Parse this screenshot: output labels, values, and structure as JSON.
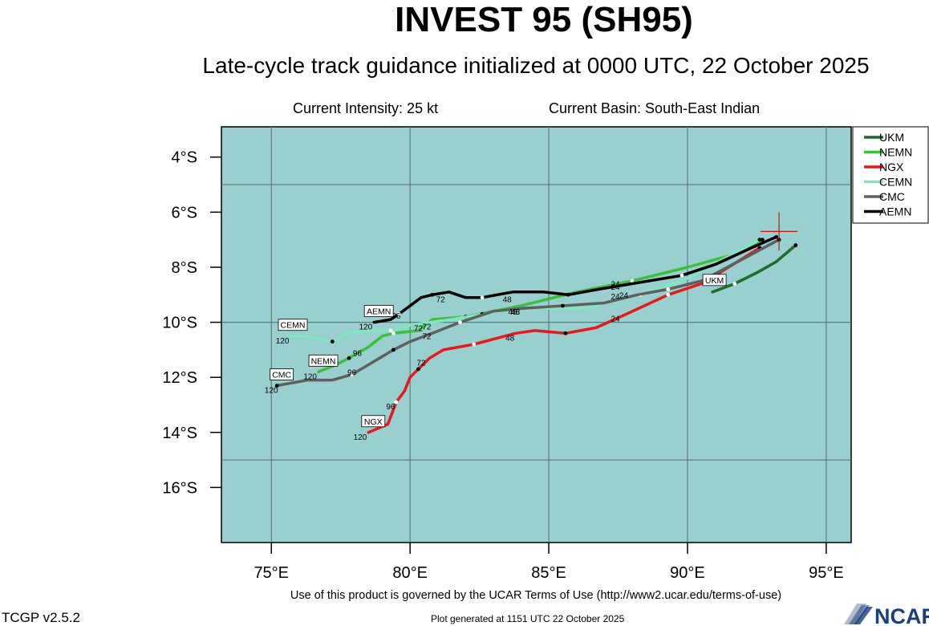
{
  "header": {
    "title": "INVEST 95 (SH95)",
    "subtitle": "Late-cycle track guidance initialized at 0000 UTC, 22 October 2025",
    "intensity": "Current Intensity: 25 kt",
    "basin": "Current Basin: South-East Indian"
  },
  "footer": {
    "terms": "Use of this product is governed by the UCAR Terms of Use (http://www2.ucar.edu/terms-of-use)",
    "version": "TCGP v2.5.2",
    "generated": "Plot generated at 1151 UTC   22 October 2025",
    "logo_text": "NCAR"
  },
  "colors": {
    "ocean": "#99cfcf",
    "UKM": "#1f6b2a",
    "NEMN": "#3cbf3c",
    "NGX": "#e61a1a",
    "CEMN": "#7fe6c0",
    "CMC": "#5f5f5f",
    "AEMN": "#000000",
    "center_marker": "#cc1111"
  },
  "chart_data": {
    "type": "line",
    "xlabel": "",
    "ylabel": "",
    "xlim": [
      73.2,
      95.9
    ],
    "ylim": [
      -18,
      -2.9
    ],
    "x_ticks": [
      75,
      80,
      85,
      90,
      95
    ],
    "x_tick_labels": [
      "75°E",
      "80°E",
      "85°E",
      "90°E",
      "95°E"
    ],
    "y_ticks": [
      -4,
      -6,
      -8,
      -10,
      -12,
      -14,
      -16
    ],
    "y_tick_labels": [
      "4°S",
      "6°S",
      "8°S",
      "10°S",
      "12°S",
      "14°S",
      "16°S"
    ],
    "grid_x": [
      75,
      80,
      85,
      90,
      95
    ],
    "grid_y": [
      -5,
      -10,
      -15
    ],
    "grid": true,
    "legend_position": "top-right",
    "current_position": {
      "lon": 93.3,
      "lat": -6.7
    },
    "series": [
      {
        "name": "UKM",
        "lon": [
          93.9,
          93.2,
          92.5,
          91.7,
          90.9
        ],
        "lat": [
          -7.2,
          -7.8,
          -8.2,
          -8.6,
          -8.9
        ],
        "hour_labels": [],
        "end_label": "UKM"
      },
      {
        "name": "NEMN",
        "lon": [
          92.7,
          91.8,
          90.0,
          88.0,
          86.0,
          84.0,
          82.0,
          80.8,
          80.3,
          79.4,
          79.0,
          78.5,
          77.8,
          77.2,
          76.7
        ],
        "lat": [
          -7.0,
          -7.5,
          -8.0,
          -8.5,
          -8.9,
          -9.4,
          -9.8,
          -9.9,
          -10.3,
          -10.4,
          -10.5,
          -10.9,
          -11.3,
          -11.6,
          -11.8
        ],
        "hour_labels": [
          {
            "lon": 87.4,
            "lat": -8.7,
            "text": "24"
          },
          {
            "lon": 83.7,
            "lat": -9.6,
            "text": "48"
          },
          {
            "lon": 80.3,
            "lat": -10.2,
            "text": "72"
          },
          {
            "lon": 78.1,
            "lat": -11.1,
            "text": "96"
          },
          {
            "lon": 76.4,
            "lat": -11.95,
            "text": "120"
          }
        ],
        "end_label": "NEMN"
      },
      {
        "name": "NGX",
        "lon": [
          92.6,
          91.8,
          90.5,
          89.3,
          87.8,
          86.7,
          85.6,
          84.5,
          83.8,
          82.3,
          81.2,
          80.7,
          80.3,
          80.0,
          79.8,
          79.5,
          79.2,
          78.5
        ],
        "lat": [
          -7.3,
          -7.8,
          -8.6,
          -9.0,
          -9.7,
          -10.2,
          -10.4,
          -10.3,
          -10.4,
          -10.8,
          -11.0,
          -11.3,
          -11.7,
          -12.0,
          -12.5,
          -12.9,
          -13.7,
          -14.0
        ],
        "hour_labels": [
          {
            "lon": 87.4,
            "lat": -9.85,
            "text": "24"
          },
          {
            "lon": 83.6,
            "lat": -10.55,
            "text": "48"
          },
          {
            "lon": 80.4,
            "lat": -11.45,
            "text": "72"
          },
          {
            "lon": 79.3,
            "lat": -13.05,
            "text": "96"
          },
          {
            "lon": 78.2,
            "lat": -14.15,
            "text": "120"
          }
        ],
        "end_label": "NGX"
      },
      {
        "name": "CEMN",
        "lon": [
          92.6,
          91.5,
          90.0,
          88.3,
          86.3,
          84.0,
          82.6,
          81.5,
          80.0,
          79.3,
          78.5,
          77.7,
          77.2,
          76.3,
          75.6
        ],
        "lat": [
          -7.0,
          -7.6,
          -8.4,
          -9.0,
          -9.5,
          -9.5,
          -9.7,
          -9.9,
          -10.1,
          -10.3,
          -10.3,
          -10.4,
          -10.7,
          -10.5,
          -10.5
        ],
        "hour_labels": [
          {
            "lon": 87.4,
            "lat": -9.05,
            "text": "24"
          },
          {
            "lon": 83.8,
            "lat": -9.6,
            "text": "48"
          },
          {
            "lon": 80.6,
            "lat": -10.15,
            "text": "72"
          },
          {
            "lon": 75.4,
            "lat": -10.65,
            "text": "120"
          }
        ],
        "end_label": "CEMN"
      },
      {
        "name": "CMC",
        "lon": [
          93.3,
          92.0,
          90.5,
          89.3,
          88.2,
          87.0,
          85.5,
          84.0,
          83.0,
          81.8,
          80.8,
          80.0,
          79.4,
          78.9,
          78.4,
          77.9,
          77.2,
          76.3,
          75.2
        ],
        "lat": [
          -7.0,
          -7.7,
          -8.5,
          -8.8,
          -9.0,
          -9.3,
          -9.4,
          -9.5,
          -9.6,
          -10.0,
          -10.4,
          -10.7,
          -11.0,
          -11.3,
          -11.6,
          -11.9,
          -12.1,
          -12.1,
          -12.3
        ],
        "hour_labels": [
          {
            "lon": 87.7,
            "lat": -9.0,
            "text": "24"
          },
          {
            "lon": 83.8,
            "lat": -9.6,
            "text": "48"
          },
          {
            "lon": 80.6,
            "lat": -10.5,
            "text": "72"
          },
          {
            "lon": 77.9,
            "lat": -11.8,
            "text": "96"
          },
          {
            "lon": 75.0,
            "lat": -12.45,
            "text": "120"
          }
        ],
        "end_label": "CMC"
      },
      {
        "name": "AEMN",
        "lon": [
          93.2,
          92.3,
          91.0,
          89.8,
          88.0,
          86.8,
          85.7,
          84.8,
          83.7,
          82.6,
          82.0,
          81.4,
          80.8,
          80.4,
          80.0,
          79.6,
          79.3,
          78.7
        ],
        "lat": [
          -6.9,
          -7.3,
          -7.9,
          -8.3,
          -8.6,
          -8.8,
          -9.0,
          -8.9,
          -8.9,
          -9.1,
          -9.1,
          -8.9,
          -9.0,
          -9.1,
          -9.4,
          -9.7,
          -9.9,
          -10.0
        ],
        "hour_labels": [
          {
            "lon": 87.4,
            "lat": -8.6,
            "text": "24"
          },
          {
            "lon": 83.5,
            "lat": -9.15,
            "text": "48"
          },
          {
            "lon": 81.1,
            "lat": -9.15,
            "text": "72"
          },
          {
            "lon": 79.5,
            "lat": -9.75,
            "text": "96"
          },
          {
            "lon": 78.4,
            "lat": -10.15,
            "text": "120"
          }
        ],
        "end_label": "AEMN"
      }
    ]
  }
}
